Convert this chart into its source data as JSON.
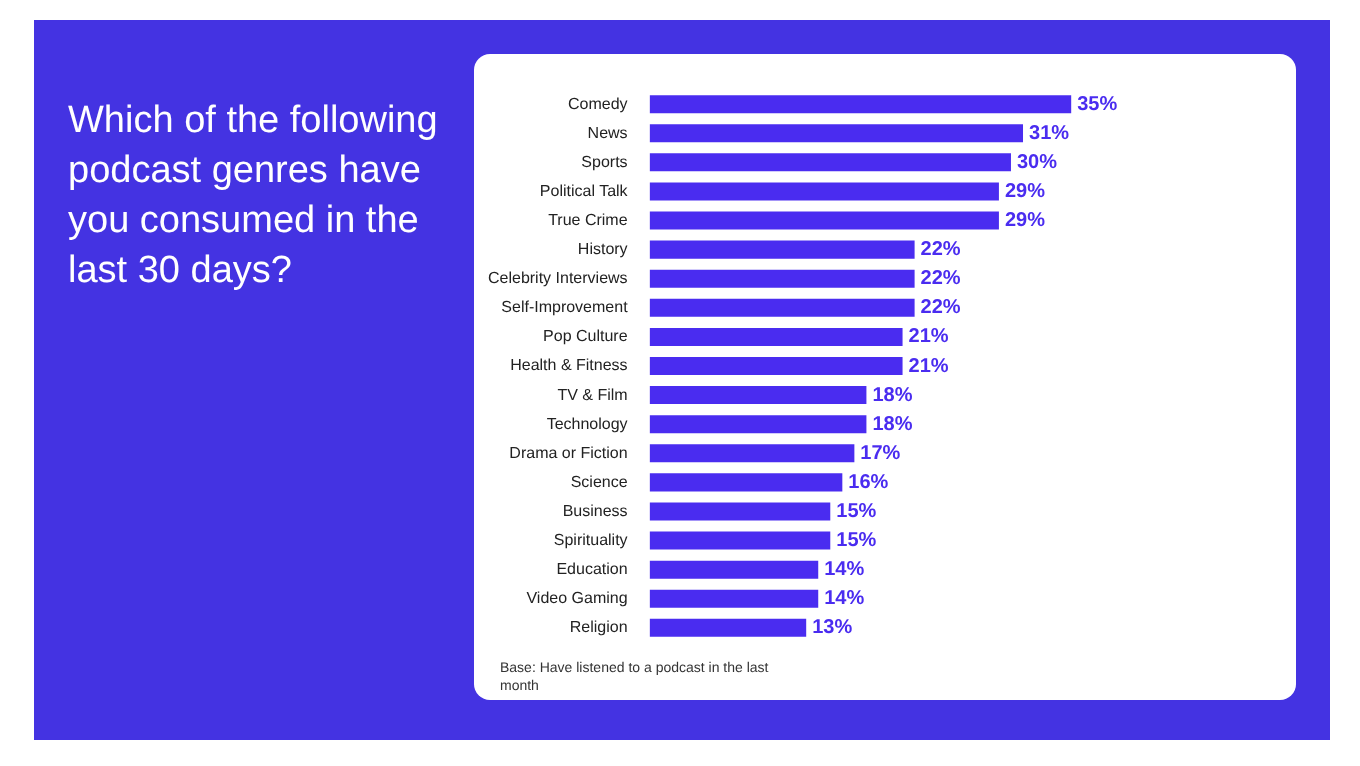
{
  "chart_data": {
    "type": "bar",
    "orientation": "horizontal",
    "title": "Which of the following podcast genres have you consumed in the last 30 days?",
    "categories": [
      "Comedy",
      "News",
      "Sports",
      "Political Talk",
      "True Crime",
      "History",
      "Celebrity Interviews",
      "Self-Improvement",
      "Pop Culture",
      "Health & Fitness",
      "TV & Film",
      "Technology",
      "Drama or Fiction",
      "Science",
      "Business",
      "Spirituality",
      "Education",
      "Video Gaming",
      "Religion"
    ],
    "values": [
      35,
      31,
      30,
      29,
      29,
      22,
      22,
      22,
      21,
      21,
      18,
      18,
      17,
      16,
      15,
      15,
      14,
      14,
      13
    ],
    "value_labels": [
      "35%",
      "31%",
      "30%",
      "29%",
      "29%",
      "22%",
      "22%",
      "22%",
      "21%",
      "21%",
      "18%",
      "18%",
      "17%",
      "16%",
      "15%",
      "15%",
      "14%",
      "14%",
      "13%"
    ],
    "color": "#4a2cf0",
    "annotations": [
      "Base: Have listened to a podcast in the last month"
    ],
    "legend": false,
    "grid": false
  }
}
